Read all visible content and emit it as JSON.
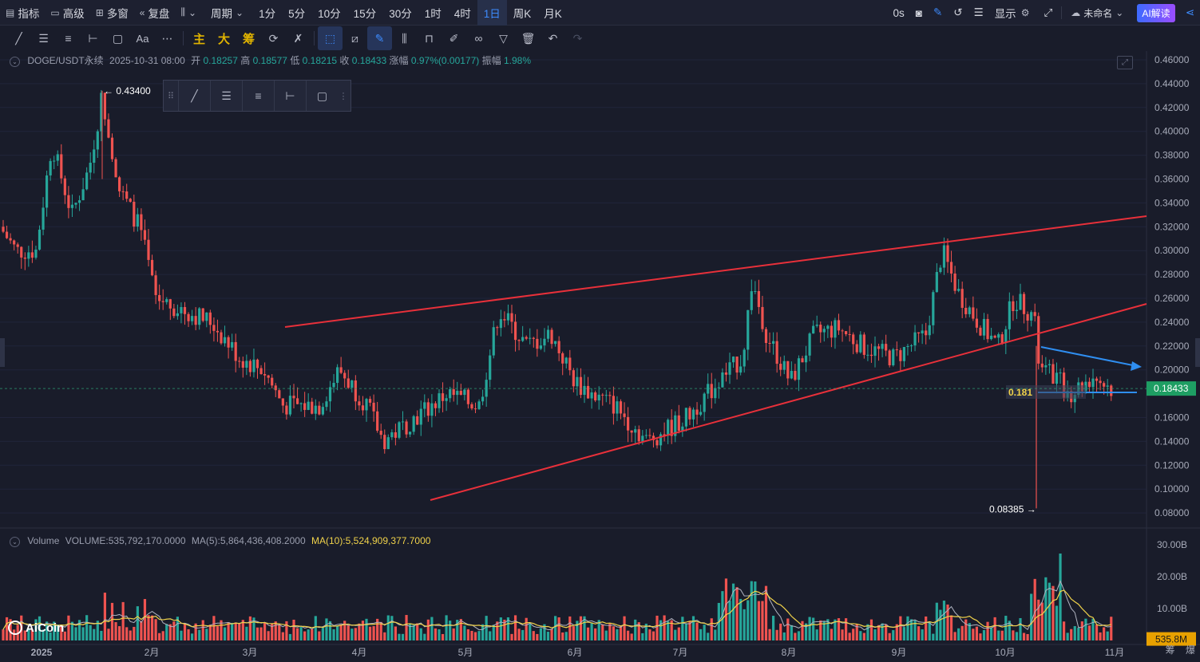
{
  "topbar": {
    "indicators": "指标",
    "advanced": "高级",
    "multi_window": "多窗",
    "replay": "复盘",
    "period_label": "周期",
    "periods": [
      "1分",
      "5分",
      "10分",
      "15分",
      "30分",
      "1时",
      "4时",
      "1日",
      "周K",
      "月K"
    ],
    "active_period": "1日",
    "countdown": "0s",
    "display": "显示",
    "layout_name": "未命名",
    "ai_button": "AI解读"
  },
  "drawbar": {
    "main_label": "主",
    "big_label": "大",
    "chip_label": "筹"
  },
  "info": {
    "symbol": "DOGE/USDT永续",
    "date": "2025-10-31 08:00",
    "open_label": "开",
    "open": "0.18257",
    "high_label": "高",
    "high": "0.18577",
    "low_label": "低",
    "low": "0.18215",
    "close_label": "收",
    "close": "0.18433",
    "change_label": "涨幅",
    "change": "0.97%(0.00177)",
    "amplitude_label": "振幅",
    "amplitude": "1.98%"
  },
  "volume_info": {
    "label": "Volume",
    "volume": "VOLUME:535,792,170.0000",
    "ma5": "MA(5):5,864,436,408.2000",
    "ma10": "MA(10):5,524,909,377.7000"
  },
  "price_axis": [
    "0.46000",
    "0.44000",
    "0.42000",
    "0.40000",
    "0.38000",
    "0.36000",
    "0.34000",
    "0.32000",
    "0.30000",
    "0.28000",
    "0.26000",
    "0.24000",
    "0.22000",
    "0.20000",
    "0.16000",
    "0.14000",
    "0.12000",
    "0.10000",
    "0.08000"
  ],
  "volume_axis": [
    "30.00B",
    "20.00B",
    "10.00B"
  ],
  "time_axis": [
    "2025",
    "2月",
    "3月",
    "4月",
    "5月",
    "6月",
    "7月",
    "8月",
    "9月",
    "10月",
    "11月"
  ],
  "current_price": "0.18433",
  "current_volume": "535.8M",
  "high_marker": "0.43400",
  "low_marker": "0.08385",
  "horizontal_line_label": "0.181",
  "logo": "AiCoin",
  "bottom_right": [
    "筹",
    "爆"
  ],
  "colors": {
    "up": "#26a69a",
    "down": "#ef5350",
    "trendline_red": "#e8303a",
    "trendline_blue": "#2f8ef0",
    "ma5": "#b0b3c0",
    "ma10": "#f0d24a",
    "price_tag": "#1e9e63"
  }
}
